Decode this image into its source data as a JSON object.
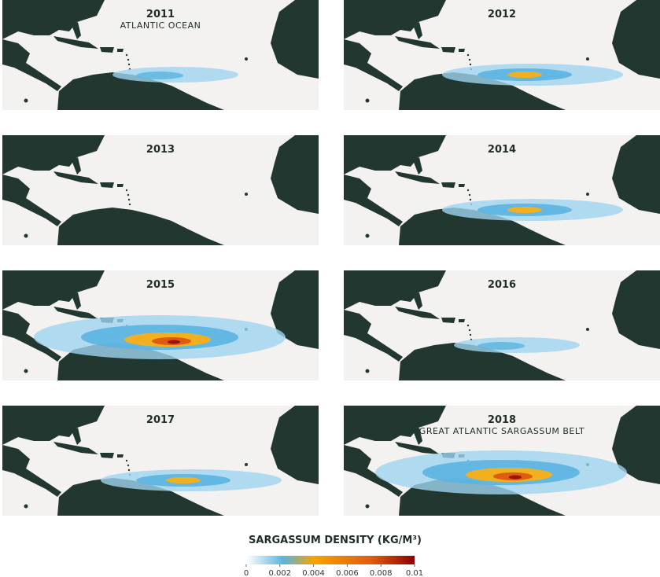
{
  "panels": [
    {
      "year": "2011",
      "note": "ATLANTIC OCEAN"
    },
    {
      "year": "2012"
    },
    {
      "year": "2013"
    },
    {
      "year": "2014"
    },
    {
      "year": "2015"
    },
    {
      "year": "2016"
    },
    {
      "year": "2017"
    },
    {
      "year": "2018",
      "note": "GREAT ATLANTIC SARGASSUM BELT"
    }
  ],
  "legend": {
    "title": "SARGASSUM DENSITY (KG/M³)",
    "range": [
      0,
      0.01
    ],
    "ticks": [
      0,
      0.002,
      0.004,
      0.006,
      0.008,
      0.01
    ]
  }
}
